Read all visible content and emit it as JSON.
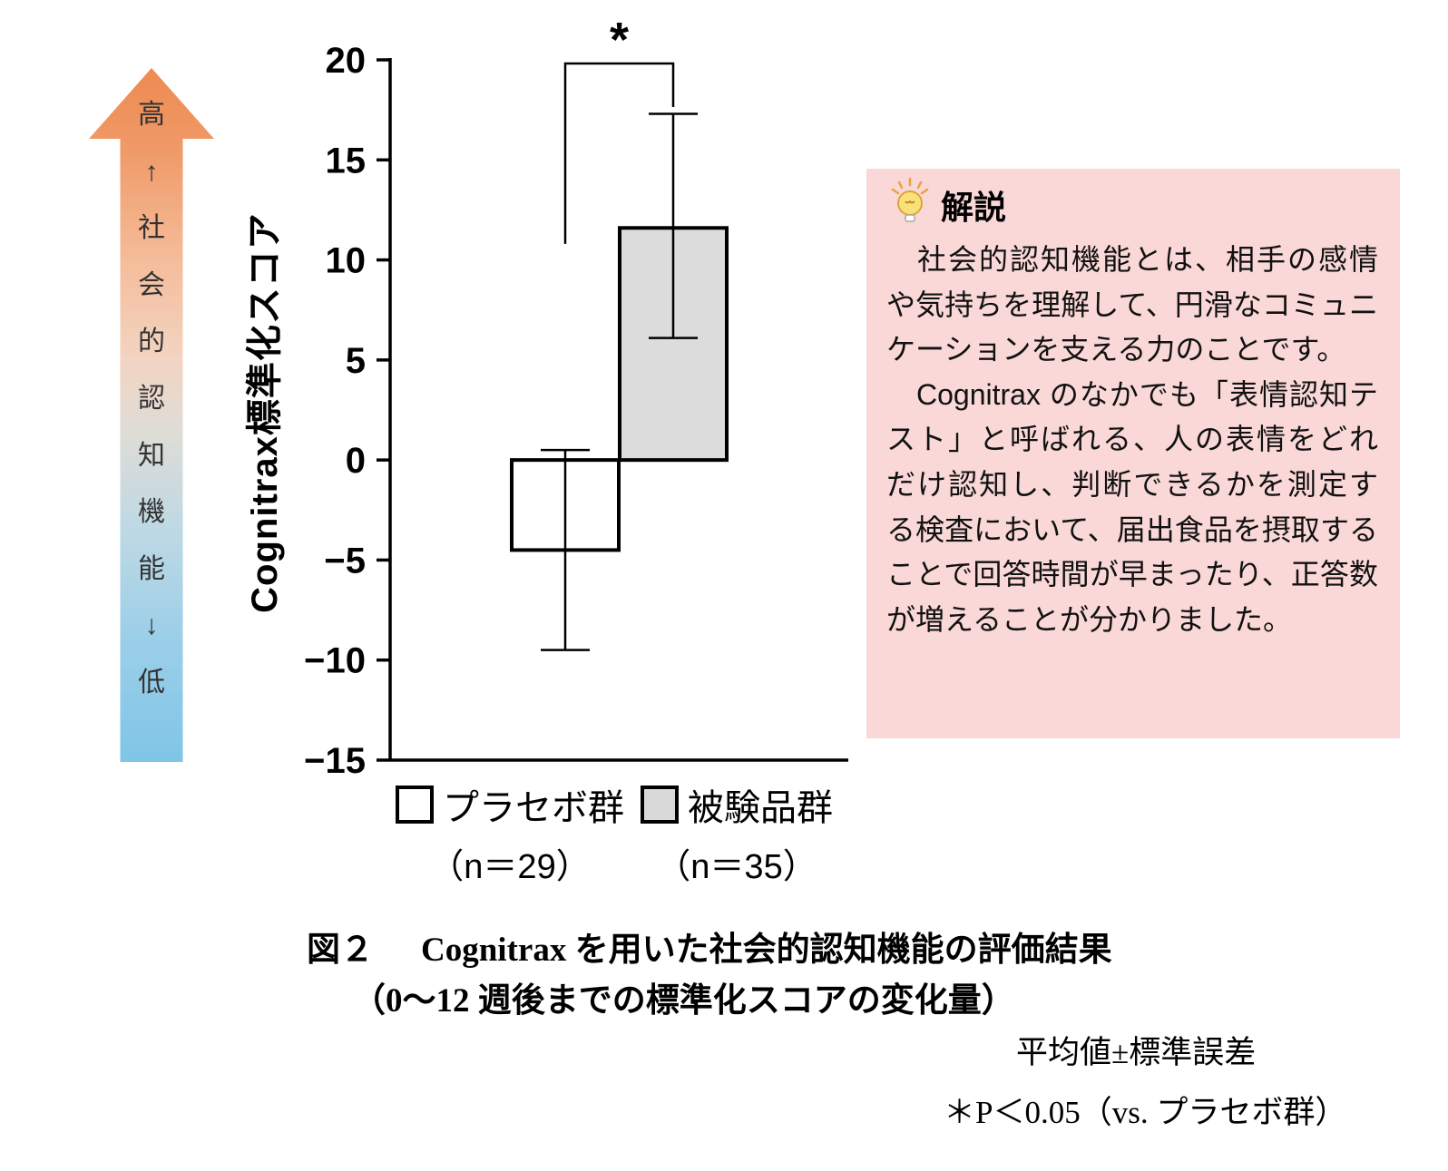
{
  "left_arrow": {
    "labels": [
      "高",
      "↑",
      "社",
      "会",
      "的",
      "認",
      "知",
      "機",
      "能",
      "↓",
      "低"
    ],
    "top_color": "#ee8a50",
    "bottom_color": "#7fc5e7"
  },
  "chart_data": {
    "type": "bar",
    "title": "Cognitrax を用いた社会的認知機能の評価結果（0～12 週後までの標準化スコアの変化量）",
    "ylabel": "Cognitrax標準化スコア",
    "xlabel": "",
    "ylim": [
      -15,
      20
    ],
    "yticks": [
      20,
      15,
      10,
      5,
      0,
      -5,
      -10,
      -15
    ],
    "grid": false,
    "legend_position": "bottom",
    "categories": [
      "プラセボ群 (n=29)",
      "被験品群 (n=35)"
    ],
    "series": [
      {
        "name": "プラセボ群 (n=29)",
        "value": -4.5,
        "err_low": -9.5,
        "err_high": 0.5,
        "fill": "#ffffff"
      },
      {
        "name": "被験品群 (n=35)",
        "value": 11.6,
        "err_low": 6.1,
        "err_high": 17.3,
        "fill": "#dcdcdc"
      }
    ],
    "error_bars": "standard error",
    "significance": "*"
  },
  "legend": [
    {
      "swatch_color": "#ffffff",
      "label": "プラセボ群",
      "sub": "（n＝29）"
    },
    {
      "swatch_color": "#d9d9d9",
      "label": "被験品群",
      "sub": "（n＝35）"
    }
  ],
  "explanation_box": {
    "icon": "lightbulb-icon",
    "bg": "#f9d8d7",
    "title": "解説",
    "paragraphs": [
      "　社会的認知機能とは、相手の感情や気持ちを理解して、円滑なコミュニケーションを支える力のことです。",
      "　Cognitrax のなかでも「表情認知テスト」と呼ばれる、人の表情をどれだけ認知し、判断できるかを測定する検査において、届出食品を摂取することで回答時間が早まったり、正答数が増えることが分かりました。"
    ]
  },
  "caption": {
    "fig_label": "図２",
    "line1": "Cognitrax を用いた社会的認知機能の評価結果",
    "line2": "（0～12 週後までの標準化スコアの変化量）"
  },
  "footnotes": {
    "line1": "平均値±標準誤差",
    "line2": "＊P＜0.05（vs. プラセボ群）"
  }
}
